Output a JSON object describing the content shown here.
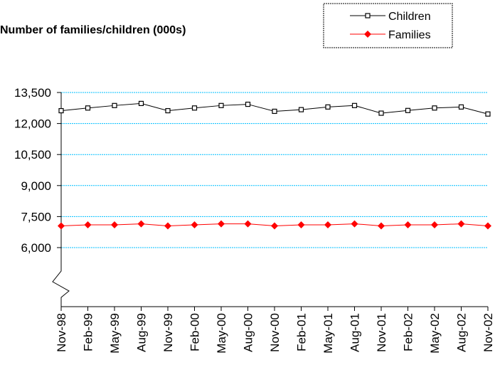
{
  "chart_data": {
    "type": "line",
    "title": "Number of families/children (000s)",
    "xlabel": "",
    "ylabel": "",
    "categories": [
      "Nov-98",
      "Feb-99",
      "May-99",
      "Aug-99",
      "Nov-99",
      "Feb-00",
      "May-00",
      "Aug-00",
      "Nov-00",
      "Feb-01",
      "May-01",
      "Aug-01",
      "Nov-01",
      "Feb-02",
      "May-02",
      "Aug-02",
      "Nov-02"
    ],
    "y_ticks": [
      6000,
      7500,
      9000,
      10500,
      12000,
      13500
    ],
    "y_tick_labels": [
      "6,000",
      "7,500",
      "9,000",
      "10,500",
      "12,000",
      "13,500"
    ],
    "ylim": [
      6000,
      13500
    ],
    "axis_break": true,
    "grid": true,
    "legend_position": "top-right",
    "series": [
      {
        "name": "Children",
        "color": "#000000",
        "marker": "square",
        "values": [
          12620,
          12750,
          12870,
          12970,
          12620,
          12750,
          12870,
          12930,
          12590,
          12670,
          12800,
          12870,
          12500,
          12630,
          12750,
          12800,
          12460
        ]
      },
      {
        "name": "Families",
        "color": "#ff0000",
        "marker": "diamond",
        "values": [
          7050,
          7100,
          7100,
          7150,
          7050,
          7100,
          7150,
          7150,
          7050,
          7100,
          7100,
          7150,
          7050,
          7100,
          7100,
          7150,
          7050
        ]
      }
    ]
  }
}
